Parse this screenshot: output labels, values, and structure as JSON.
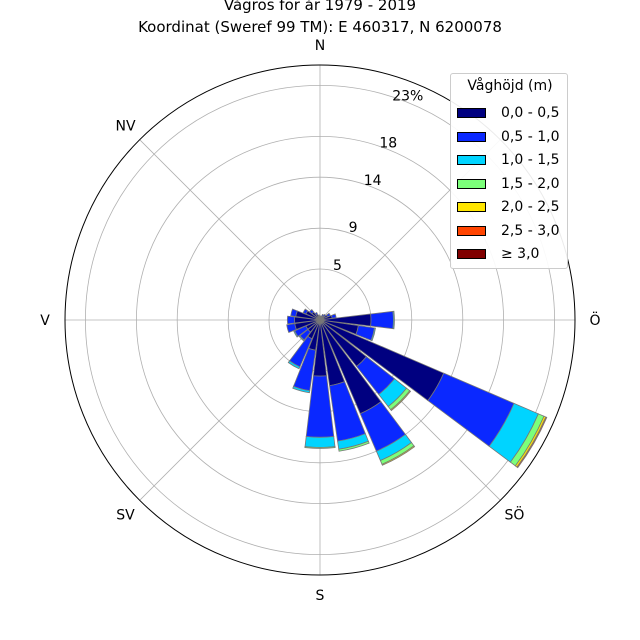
{
  "chart_data": {
    "type": "polar-bar",
    "title": "Vågros för år 1979 - 2019",
    "subtitle": "Koordinat (Sweref 99 TM): E 460317, N 6200078",
    "directions": [
      "N",
      "NV",
      "V",
      "SV",
      "S",
      "SÖ",
      "Ö"
    ],
    "radial_ticks": [
      "5",
      "9",
      "14",
      "18",
      "23%"
    ],
    "radial_tick_values": [
      5,
      9,
      14,
      18,
      23
    ],
    "rmax": 25,
    "legend_title": "Våghöjd (m)",
    "legend_position": "top-right",
    "series": [
      {
        "name": "0,0 - 0,5",
        "color": "#000080"
      },
      {
        "name": "0,5 - 1,0",
        "color": "#0a28ff"
      },
      {
        "name": "1,0 - 1,5",
        "color": "#00d4ff"
      },
      {
        "name": "1,5 - 2,0",
        "color": "#7cff7a"
      },
      {
        "name": "2,0 - 2,5",
        "color": "#ffe600"
      },
      {
        "name": "2,5 - 3,0",
        "color": "#ff4400"
      },
      {
        "name": "≥ 3,0",
        "color": "#800000"
      }
    ],
    "sectors": [
      {
        "bearing": 0,
        "values": [
          0.3,
          0.1,
          0,
          0,
          0,
          0,
          0
        ]
      },
      {
        "bearing": 15,
        "values": [
          0.3,
          0.1,
          0,
          0,
          0,
          0,
          0
        ]
      },
      {
        "bearing": 30,
        "values": [
          0.4,
          0.2,
          0,
          0,
          0,
          0,
          0
        ]
      },
      {
        "bearing": 45,
        "values": [
          0.5,
          0.2,
          0,
          0,
          0,
          0,
          0
        ]
      },
      {
        "bearing": 60,
        "values": [
          0.8,
          0.3,
          0,
          0,
          0,
          0,
          0
        ]
      },
      {
        "bearing": 75,
        "values": [
          1.2,
          0.4,
          0,
          0,
          0,
          0,
          0
        ]
      },
      {
        "bearing": 90,
        "values": [
          5.0,
          2.2,
          0.1,
          0,
          0,
          0,
          0
        ]
      },
      {
        "bearing": 105,
        "values": [
          3.8,
          1.6,
          0.1,
          0,
          0,
          0,
          0
        ]
      },
      {
        "bearing": 120,
        "values": [
          13.2,
          7.5,
          2.6,
          0.6,
          0.2,
          0.1,
          0
        ]
      },
      {
        "bearing": 135,
        "values": [
          5.8,
          3.5,
          1.5,
          0.4,
          0.1,
          0,
          0
        ]
      },
      {
        "bearing": 150,
        "values": [
          10.0,
          4.0,
          1.0,
          0.4,
          0.1,
          0,
          0
        ]
      },
      {
        "bearing": 165,
        "values": [
          6.5,
          5.5,
          0.8,
          0.2,
          0,
          0,
          0
        ]
      },
      {
        "bearing": 180,
        "values": [
          5.5,
          6.0,
          1.0,
          0.1,
          0,
          0,
          0
        ]
      },
      {
        "bearing": 195,
        "values": [
          3.0,
          4.0,
          0.2,
          0,
          0,
          0,
          0
        ]
      },
      {
        "bearing": 210,
        "values": [
          2.0,
          3.0,
          0.2,
          0,
          0,
          0,
          0
        ]
      },
      {
        "bearing": 225,
        "values": [
          1.5,
          1.0,
          0.1,
          0,
          0,
          0,
          0
        ]
      },
      {
        "bearing": 240,
        "values": [
          1.5,
          1.2,
          0.1,
          0,
          0,
          0,
          0
        ]
      },
      {
        "bearing": 255,
        "values": [
          2.5,
          0.8,
          0,
          0,
          0,
          0,
          0
        ]
      },
      {
        "bearing": 270,
        "values": [
          2.5,
          0.7,
          0,
          0,
          0,
          0,
          0
        ]
      },
      {
        "bearing": 285,
        "values": [
          2.4,
          0.5,
          0,
          0,
          0,
          0,
          0
        ]
      },
      {
        "bearing": 300,
        "values": [
          1.5,
          0.3,
          0,
          0,
          0,
          0,
          0
        ]
      },
      {
        "bearing": 315,
        "values": [
          1.0,
          0.3,
          0,
          0,
          0,
          0,
          0
        ]
      },
      {
        "bearing": 330,
        "values": [
          0.6,
          0.2,
          0,
          0,
          0,
          0,
          0
        ]
      },
      {
        "bearing": 345,
        "values": [
          0.4,
          0.1,
          0,
          0,
          0,
          0,
          0
        ]
      }
    ],
    "grid": true
  }
}
